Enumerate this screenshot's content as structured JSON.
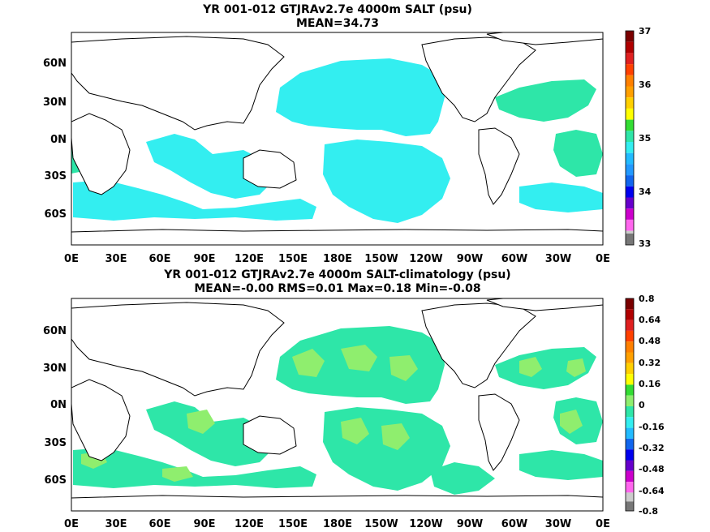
{
  "chart_data": [
    {
      "type": "heatmap",
      "title": "YR 001-012 GTJRAv2.7e 4000m SALT (psu)",
      "subtitle": "MEAN=34.73",
      "x_ticks": [
        "0E",
        "30E",
        "60E",
        "90E",
        "120E",
        "150E",
        "180E",
        "150W",
        "120W",
        "90W",
        "60W",
        "30W",
        "0E"
      ],
      "y_ticks": [
        "60N",
        "30N",
        "0N",
        "30S",
        "60S"
      ],
      "colorbar": {
        "labels": [
          "37",
          "36",
          "35",
          "34",
          "33"
        ],
        "range": [
          33,
          37
        ]
      },
      "shaded_levels": [
        {
          "value": 34.75,
          "color": "#33eef0",
          "region": "Pacific, Indian and Southern Ocean"
        },
        {
          "value": 34.95,
          "color": "#2ee6a8",
          "region": "North and South Atlantic"
        }
      ]
    },
    {
      "type": "heatmap",
      "title": "YR 001-012 GTJRAv2.7e 4000m SALT-climatology (psu)",
      "subtitle": "MEAN=-0.00   RMS=0.01   Max=0.18   Min=-0.08",
      "x_ticks": [
        "0E",
        "30E",
        "60E",
        "90E",
        "120E",
        "150E",
        "180E",
        "150W",
        "120W",
        "90W",
        "60W",
        "30W",
        "0E"
      ],
      "y_ticks": [
        "60N",
        "30N",
        "0N",
        "30S",
        "60S"
      ],
      "colorbar": {
        "labels": [
          "0.8",
          "0.64",
          "0.48",
          "0.32",
          "0.16",
          "0",
          "-0.16",
          "-0.32",
          "-0.48",
          "-0.64",
          "-0.8"
        ],
        "range": [
          -0.8,
          0.8
        ]
      },
      "shaded_levels": [
        {
          "value": -0.04,
          "color": "#2ee6a8",
          "region": "most deep ocean"
        },
        {
          "value": 0.04,
          "color": "#8fee6e",
          "region": "patches in Pacific and Atlantic"
        }
      ]
    }
  ]
}
